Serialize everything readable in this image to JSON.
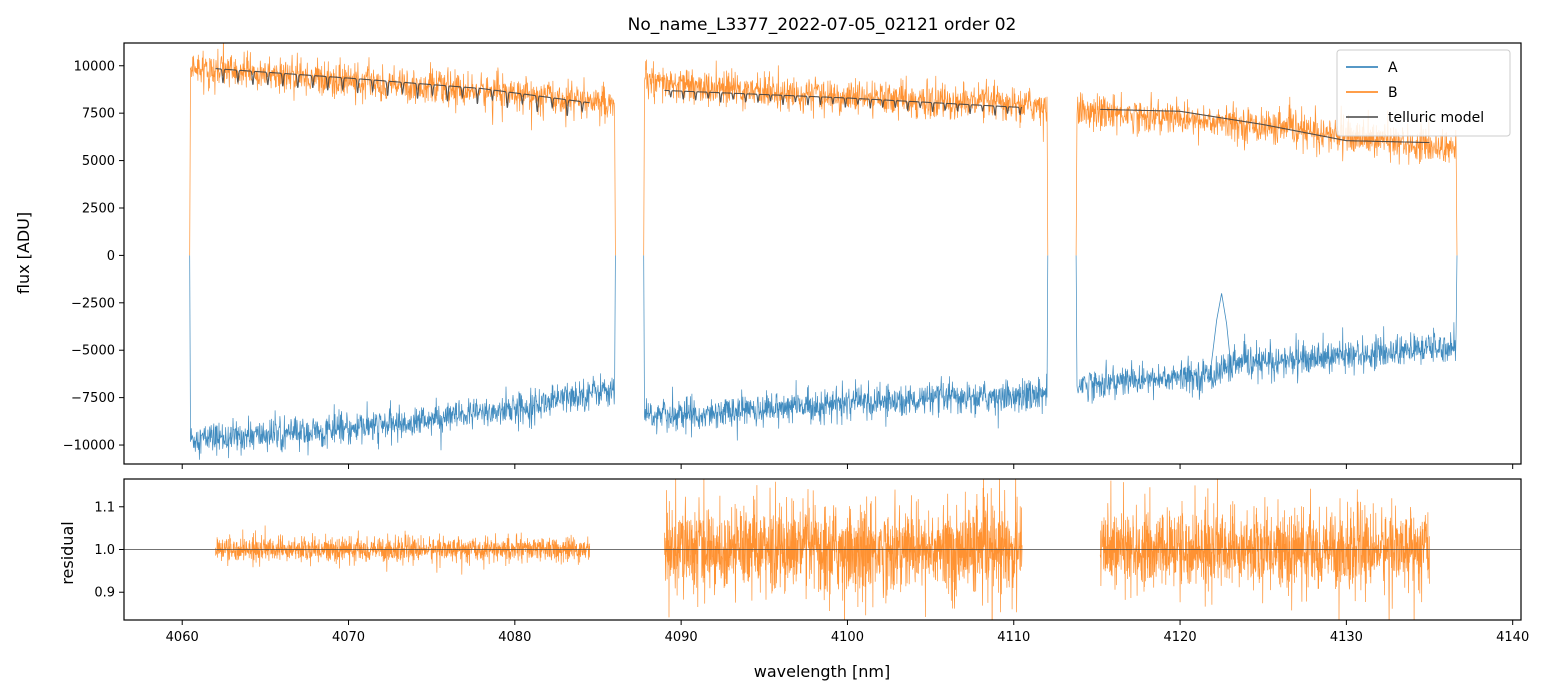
{
  "chart_data": [
    {
      "panel": "top",
      "type": "line",
      "title": "No_name_L3377_2022-07-05_02121  order 02",
      "xlabel": "",
      "ylabel": "flux [ADU]",
      "xlim": [
        4056.5,
        4140.5
      ],
      "ylim": [
        -11000,
        11200
      ],
      "yticks": [
        10000,
        7500,
        5000,
        2500,
        0,
        -2500,
        -5000,
        -7500,
        -10000
      ],
      "xticks": [
        4060,
        4070,
        4080,
        4090,
        4100,
        4110,
        4120,
        4130,
        4140
      ],
      "legend": {
        "position": "top-right",
        "entries": [
          "A",
          "B",
          "telluric model"
        ]
      },
      "segments": [
        {
          "x_range": [
            4060.5,
            4086.0
          ]
        },
        {
          "x_range": [
            4087.8,
            4112.0
          ]
        },
        {
          "x_range": [
            4113.8,
            4136.6
          ]
        }
      ],
      "series": [
        {
          "name": "A",
          "color": "#1f77b4",
          "style": "noisy",
          "points": [
            [
              4060.5,
              -9700
            ],
            [
              4070,
              -9200
            ],
            [
              4080,
              -8100
            ],
            [
              4085.8,
              -7000
            ],
            [
              4087.8,
              -8500
            ],
            [
              4100,
              -7800
            ],
            [
              4112.0,
              -7300
            ],
            [
              4113.8,
              -6800
            ],
            [
              4122.0,
              -6300
            ],
            [
              4123.0,
              -5800
            ],
            [
              4136.6,
              -4800
            ]
          ]
        },
        {
          "name": "B",
          "color": "#ff7f0e",
          "style": "noisy",
          "points": [
            [
              4060.5,
              9900
            ],
            [
              4070,
              9200
            ],
            [
              4080,
              8500
            ],
            [
              4086.0,
              8000
            ],
            [
              4087.8,
              9100
            ],
            [
              4100,
              8300
            ],
            [
              4112.0,
              7900
            ],
            [
              4113.8,
              7700
            ],
            [
              4125,
              6800
            ],
            [
              4136.6,
              5600
            ]
          ]
        },
        {
          "name": "telluric model",
          "color": "#444444",
          "style": "smooth",
          "points": [
            [
              4062.0,
              9850
            ],
            [
              4070,
              9350
            ],
            [
              4078,
              8800
            ],
            [
              4084.5,
              8050
            ],
            [
              4089.0,
              8700
            ],
            [
              4100,
              8300
            ],
            [
              4110.5,
              7800
            ],
            [
              4115.2,
              7700
            ],
            [
              4120,
              7600
            ],
            [
              4125,
              6900
            ],
            [
              4130,
              6050
            ],
            [
              4135.0,
              5950
            ]
          ]
        }
      ]
    },
    {
      "panel": "bottom",
      "type": "line",
      "title": "",
      "xlabel": "wavelength [nm]",
      "ylabel": "residual",
      "xlim": [
        4056.5,
        4140.5
      ],
      "ylim": [
        0.835,
        1.165
      ],
      "yticks": [
        1.1,
        1.0,
        0.9
      ],
      "ytick_labels": [
        "1.1",
        "1.0",
        "0.9"
      ],
      "xticks": [
        4060,
        4070,
        4080,
        4090,
        4100,
        4110,
        4120,
        4130,
        4140
      ],
      "reference_line": 1.0,
      "series": [
        {
          "name": "residual",
          "color": "#ff7f0e",
          "segments": [
            {
              "x_range": [
                4062.0,
                4084.5
              ],
              "center": 1.0,
              "spread": 0.025
            },
            {
              "x_range": [
                4089.0,
                4110.5
              ],
              "center": 1.0,
              "spread": 0.09
            },
            {
              "x_range": [
                4115.2,
                4135.0
              ],
              "center": 1.0,
              "spread": 0.08
            }
          ]
        }
      ]
    }
  ]
}
